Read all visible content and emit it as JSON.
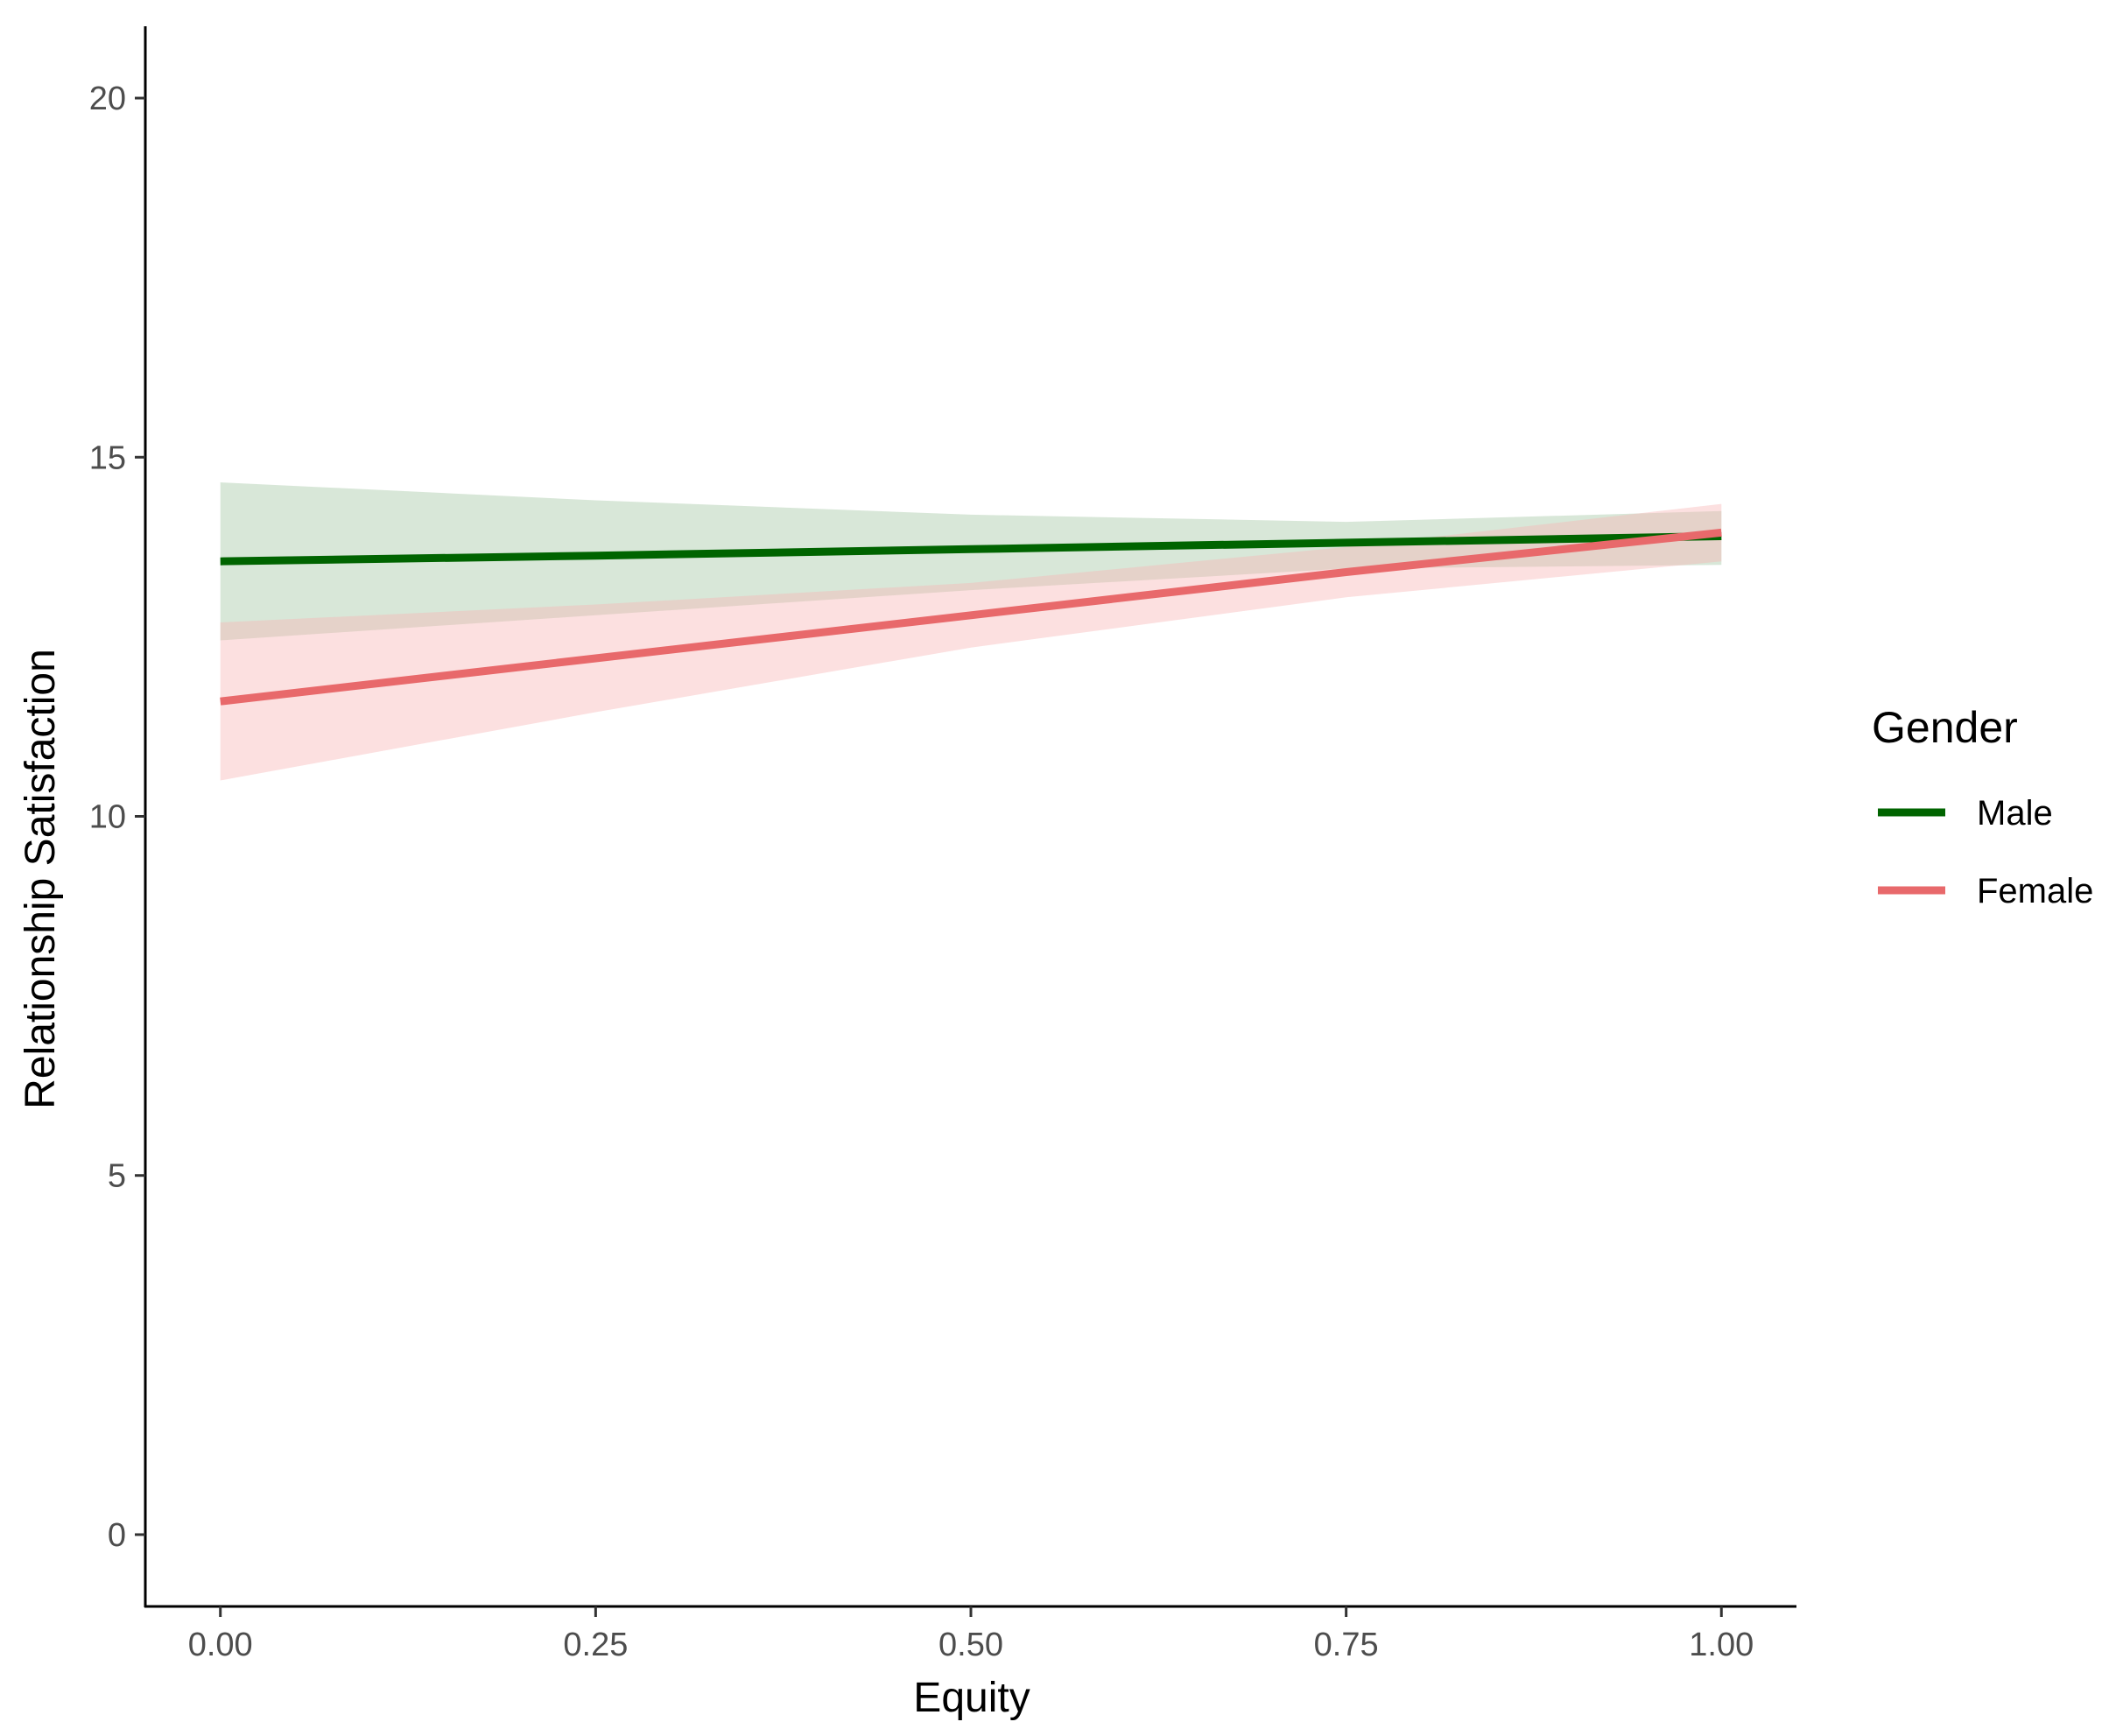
{
  "chart_data": {
    "type": "line",
    "title": "",
    "xlabel": "Equity",
    "ylabel": "Relationship Satisfaction",
    "xlim": [
      -0.05,
      1.05
    ],
    "ylim": [
      -1,
      21
    ],
    "x_ticks": [
      0,
      0.25,
      0.5,
      0.75,
      1
    ],
    "x_tick_labels": [
      "0.00",
      "0.25",
      "0.50",
      "0.75",
      "1.00"
    ],
    "y_ticks": [
      0,
      5,
      10,
      15,
      20
    ],
    "y_tick_labels": [
      "0",
      "5",
      "10",
      "15",
      "20"
    ],
    "grid": false,
    "legend": {
      "title": "Gender",
      "position": "right"
    },
    "series": [
      {
        "name": "Male",
        "color": "#006400",
        "band_color": "#8fb98f",
        "x": [
          0,
          0.25,
          0.5,
          0.75,
          1
        ],
        "y": [
          13.55,
          13.63,
          13.72,
          13.81,
          13.9
        ],
        "ci_lower": [
          12.45,
          12.8,
          13.15,
          13.45,
          13.5
        ],
        "ci_upper": [
          14.65,
          14.4,
          14.2,
          14.1,
          14.25
        ]
      },
      {
        "name": "Female",
        "color": "#e8696b",
        "band_color": "#f7b6b6",
        "x": [
          0,
          0.25,
          0.5,
          0.75,
          1
        ],
        "y": [
          11.6,
          12.2,
          12.8,
          13.4,
          13.95
        ],
        "ci_lower": [
          10.5,
          11.45,
          12.35,
          13.05,
          13.55
        ],
        "ci_upper": [
          12.7,
          12.95,
          13.25,
          13.75,
          14.35
        ]
      }
    ]
  }
}
